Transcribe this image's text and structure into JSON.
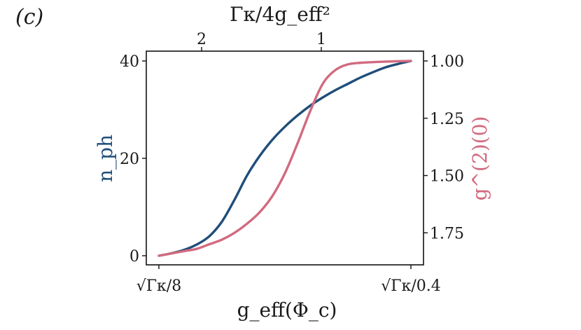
{
  "panel_label": "(c)",
  "chart_data": {
    "type": "line",
    "title": "",
    "xlabel": "g_eff(Φ_c)",
    "x_tick_labels": [
      "√Γκ/8",
      "√Γκ/0.4"
    ],
    "x_range": [
      0,
      1
    ],
    "top_axis": {
      "label": "Γκ/4g_eff²",
      "tick_labels": [
        "2",
        "1"
      ]
    },
    "y_left": {
      "label": "n_ph",
      "color": "#1f4e79",
      "range": [
        0,
        40
      ],
      "ticks": [
        0,
        20,
        40
      ],
      "tick_labels": [
        "0",
        "20",
        "40"
      ]
    },
    "y_right": {
      "label": "g^(2)(0)",
      "color": "#d16a7f",
      "range": [
        1.0,
        1.85
      ],
      "inverted": true,
      "ticks": [
        1.0,
        1.25,
        1.5,
        1.75
      ],
      "tick_labels": [
        "1.00",
        "1.25",
        "1.50",
        "1.75"
      ]
    },
    "grid": false,
    "series": [
      {
        "name": "n_ph",
        "axis": "left",
        "color": "#1f4e79",
        "x": [
          0.0,
          0.05,
          0.1,
          0.15,
          0.2,
          0.25,
          0.3,
          0.35,
          0.4,
          0.45,
          0.5,
          0.55,
          0.6,
          0.65,
          0.7,
          0.75,
          0.8,
          0.85,
          0.9,
          0.95,
          1.0
        ],
        "y": [
          0.0,
          0.5,
          1.2,
          2.3,
          4.0,
          7.0,
          11.5,
          16.5,
          20.5,
          23.8,
          26.5,
          28.8,
          30.8,
          32.5,
          34.0,
          35.3,
          36.6,
          37.7,
          38.7,
          39.4,
          40.0
        ]
      },
      {
        "name": "g^(2)(0)",
        "axis": "right",
        "color": "#d16a7f",
        "x": [
          0.0,
          0.05,
          0.1,
          0.15,
          0.2,
          0.25,
          0.3,
          0.35,
          0.4,
          0.45,
          0.5,
          0.55,
          0.6,
          0.65,
          0.7,
          0.75,
          0.8,
          0.85,
          0.9,
          0.95,
          1.0
        ],
        "y": [
          1.85,
          1.84,
          1.83,
          1.82,
          1.8,
          1.78,
          1.75,
          1.71,
          1.66,
          1.59,
          1.49,
          1.36,
          1.22,
          1.1,
          1.04,
          1.015,
          1.008,
          1.005,
          1.003,
          1.001,
          1.0
        ]
      }
    ]
  }
}
